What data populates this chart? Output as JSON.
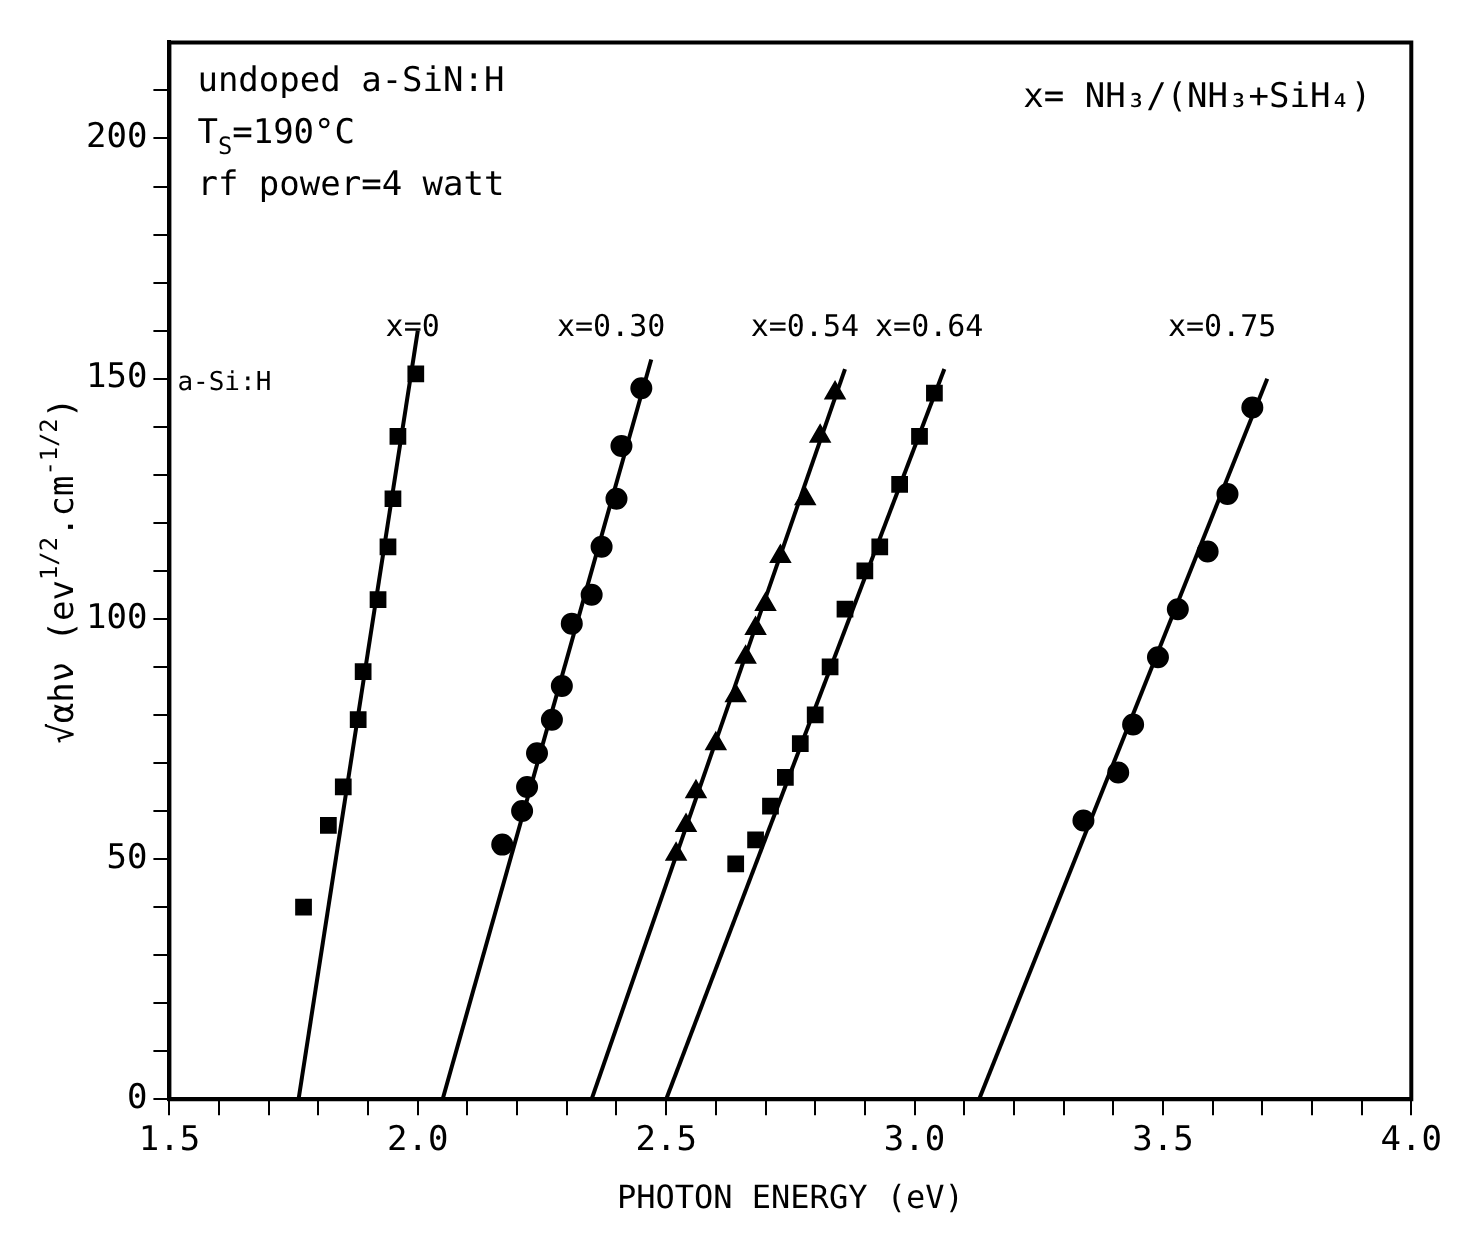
{
  "chart_data": {
    "type": "scatter",
    "xlabel": "PHOTON ENERGY (eV)",
    "ylabel": "√αhν (ev$^{1/2}$.cm$^{-1/2}$)",
    "xlim": [
      1.5,
      4.0
    ],
    "xticks": [
      1.5,
      {
        "value": 1.6,
        "label": null
      },
      {
        "value": 1.7,
        "label": null
      },
      {
        "value": 1.8,
        "label": null
      },
      {
        "value": 1.9,
        "label": null
      },
      {
        "value": 2,
        "label": "2.0"
      },
      {
        "value": 2.1,
        "label": null
      },
      {
        "value": 2.2,
        "label": null
      },
      {
        "value": 2.3,
        "label": null
      },
      {
        "value": 2.4,
        "label": null
      },
      2.5,
      {
        "value": 2.6,
        "label": null
      },
      {
        "value": 2.7,
        "label": null
      },
      {
        "value": 2.8,
        "label": null
      },
      {
        "value": 2.9,
        "label": null
      },
      {
        "value": 3,
        "label": "3.0"
      },
      {
        "value": 3.1,
        "label": null
      },
      {
        "value": 3.2,
        "label": null
      },
      {
        "value": 3.3,
        "label": null
      },
      {
        "value": 3.4,
        "label": null
      },
      3.5,
      {
        "value": 3.6,
        "label": null
      },
      {
        "value": 3.7,
        "label": null
      },
      {
        "value": 3.8,
        "label": null
      },
      {
        "value": 3.9,
        "label": null
      },
      {
        "value": 4,
        "label": "4.0"
      }
    ],
    "ylim": [
      0,
      220
    ],
    "yticks": [
      0,
      {
        "value": 10,
        "label": null
      },
      {
        "value": 20,
        "label": null
      },
      {
        "value": 30,
        "label": null
      },
      {
        "value": 40,
        "label": null
      },
      50,
      {
        "value": 60,
        "label": null
      },
      {
        "value": 70,
        "label": null
      },
      {
        "value": 80,
        "label": null
      },
      {
        "value": 90,
        "label": null
      },
      100,
      {
        "value": 110,
        "label": null
      },
      {
        "value": 120,
        "label": null
      },
      {
        "value": 130,
        "label": null
      },
      {
        "value": 140,
        "label": null
      },
      150,
      {
        "value": 160,
        "label": null
      },
      {
        "value": 170,
        "label": null
      },
      {
        "value": 180,
        "label": null
      },
      {
        "value": 190,
        "label": null
      },
      200,
      {
        "value": 210,
        "label": null
      }
    ],
    "grid": false,
    "legend": false,
    "annotations": [
      "undoped a-SiN:H",
      "T$_{S}$=190°C",
      "rf power=4 watt",
      "x= NH₃/(NH₃+SiH₄)",
      "a-Si:H"
    ],
    "series": [
      {
        "name": "x=0",
        "type": "scatter",
        "marker": "square",
        "color": "#000000",
        "x": [
          1.77,
          1.82,
          1.85,
          1.88,
          1.89,
          1.92,
          1.94,
          1.95,
          1.96,
          1.996
        ],
        "values": [
          40,
          57,
          65,
          79,
          89,
          104,
          115,
          125,
          138,
          151
        ]
      },
      {
        "type": "line",
        "marker": "none",
        "color": "#000000",
        "x": [
          1.76,
          2.0
        ],
        "values": [
          0,
          160
        ]
      },
      {
        "name": "x=0.30",
        "type": "scatter",
        "marker": "circle",
        "color": "#000000",
        "x": [
          2.17,
          2.21,
          2.22,
          2.24,
          2.27,
          2.29,
          2.31,
          2.35,
          2.37,
          2.4,
          2.41,
          2.45
        ],
        "values": [
          53,
          60,
          65,
          72,
          79,
          86,
          99,
          105,
          115,
          125,
          136,
          148
        ]
      },
      {
        "type": "line",
        "marker": "none",
        "color": "#000000",
        "x": [
          2.05,
          2.47
        ],
        "values": [
          0,
          154
        ]
      },
      {
        "name": "x=0.54",
        "type": "scatter",
        "marker": "triangle",
        "color": "#000000",
        "x": [
          2.52,
          2.54,
          2.56,
          2.6,
          2.64,
          2.66,
          2.68,
          2.7,
          2.73,
          2.78,
          2.81,
          2.84
        ],
        "values": [
          51,
          57,
          64,
          74,
          84,
          92,
          98,
          103,
          113,
          125,
          138,
          147
        ]
      },
      {
        "type": "line",
        "marker": "none",
        "color": "#000000",
        "x": [
          2.35,
          2.86
        ],
        "values": [
          0,
          152
        ]
      },
      {
        "name": "x=0.64",
        "type": "scatter",
        "marker": "square",
        "color": "#000000",
        "x": [
          2.64,
          2.68,
          2.71,
          2.74,
          2.77,
          2.8,
          2.83,
          2.86,
          2.9,
          2.93,
          2.97,
          3.01,
          3.04
        ],
        "values": [
          49,
          54,
          61,
          67,
          74,
          80,
          90,
          102,
          110,
          115,
          128,
          138,
          147
        ]
      },
      {
        "type": "line",
        "marker": "none",
        "color": "#000000",
        "x": [
          2.5,
          3.06
        ],
        "values": [
          0,
          152
        ]
      },
      {
        "name": "x=0.75",
        "type": "scatter",
        "marker": "circle",
        "color": "#000000",
        "x": [
          3.34,
          3.41,
          3.44,
          3.49,
          3.53,
          3.59,
          3.63,
          3.68
        ],
        "values": [
          58,
          68,
          78,
          92,
          102,
          114,
          126,
          144
        ]
      },
      {
        "type": "line",
        "marker": "none",
        "color": "#000000",
        "x": [
          3.13,
          3.71
        ],
        "values": [
          0,
          150
        ]
      }
    ]
  }
}
